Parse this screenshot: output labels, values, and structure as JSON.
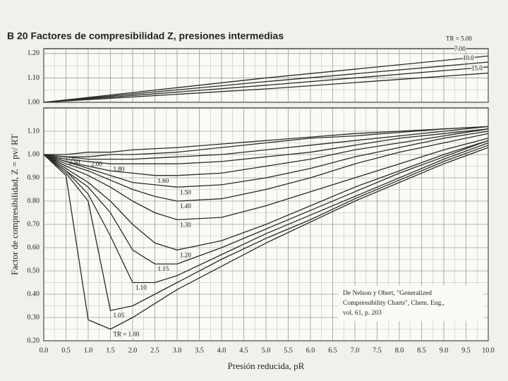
{
  "chart_data": [
    {
      "type": "line",
      "title": "B 20   Factores de compresibilidad Z, presiones intermedias",
      "x": [
        0,
        5,
        10
      ],
      "xlim": [
        0,
        10
      ],
      "ylim": [
        1.0,
        1.22
      ],
      "yticks": [
        {
          "value": 1.0,
          "label": "1.00"
        },
        {
          "value": 1.1,
          "label": "1.10"
        },
        {
          "value": 1.2,
          "label": "1.20"
        }
      ],
      "grid": true,
      "color": "#2a2a2a",
      "series": [
        {
          "name": "TR = 5.00",
          "values": [
            1.0,
            1.1,
            1.19
          ]
        },
        {
          "name": "7.00",
          "values": [
            1.0,
            1.085,
            1.165
          ]
        },
        {
          "name": "10.0",
          "values": [
            1.0,
            1.07,
            1.145
          ]
        },
        {
          "name": "15.0",
          "values": [
            1.0,
            1.055,
            1.12
          ]
        }
      ]
    },
    {
      "type": "line",
      "xlabel": "Presión reducida, pR",
      "ylabel": "Factor de compresibilidad, Z = pv/ RT",
      "annotation": [
        "De Nelson y Obert, \"Generalized",
        "Compressibility Charts\", Chem. Eng.,",
        "vol. 61, p. 203"
      ],
      "x": [
        0,
        0.5,
        1.0,
        1.5,
        2.0,
        2.5,
        3,
        4,
        5,
        6,
        7,
        8,
        9,
        10
      ],
      "xlim": [
        0,
        10
      ],
      "ylim": [
        0.2,
        1.2
      ],
      "xticks": [
        {
          "value": 0,
          "label": "0.0"
        },
        0.5,
        {
          "value": 1,
          "label": "1.0"
        },
        1.5,
        {
          "value": 2,
          "label": "2.0"
        },
        2.5,
        {
          "value": 3,
          "label": "3.0"
        },
        3.5,
        {
          "value": 4,
          "label": "4.0"
        },
        4.5,
        {
          "value": 5,
          "label": "5.0"
        },
        5.5,
        {
          "value": 6,
          "label": "6.0"
        },
        6.5,
        {
          "value": 7,
          "label": "7.0"
        },
        7.5,
        {
          "value": 8,
          "label": "8.0"
        },
        8.5,
        {
          "value": 9,
          "label": "9.0"
        },
        9.5,
        {
          "value": 10,
          "label": "10.0"
        }
      ],
      "yticks": [
        {
          "value": 0.2,
          "label": "0.20"
        },
        {
          "value": 0.3,
          "label": "0.30"
        },
        {
          "value": 0.4,
          "label": "0.40"
        },
        {
          "value": 0.5,
          "label": "0.50"
        },
        {
          "value": 0.6,
          "label": "0.60"
        },
        {
          "value": 0.7,
          "label": "0.70"
        },
        {
          "value": 0.8,
          "label": "0.80"
        },
        {
          "value": 0.9,
          "label": "0.90"
        },
        {
          "value": 1.0,
          "label": "1.00"
        },
        {
          "value": 1.1,
          "label": "1.10"
        }
      ],
      "grid": true,
      "color": "#2a2a2a",
      "series": [
        {
          "name": "TR = 3.50",
          "values": [
            1.0,
            1.0,
            1.01,
            1.01,
            1.02,
            1.025,
            1.03,
            1.045,
            1.06,
            1.075,
            1.09,
            1.1,
            1.11,
            1.12
          ]
        },
        {
          "name": "2.50",
          "values": [
            1.0,
            0.99,
            0.99,
            1.0,
            1.0,
            1.005,
            1.01,
            1.03,
            1.05,
            1.07,
            1.08,
            1.095,
            1.11,
            1.12
          ]
        },
        {
          "name": "2.00",
          "values": [
            1.0,
            0.99,
            0.98,
            0.98,
            0.98,
            0.985,
            0.99,
            1.0,
            1.02,
            1.04,
            1.06,
            1.08,
            1.1,
            1.12
          ]
        },
        {
          "name": "1.80",
          "values": [
            1.0,
            0.98,
            0.97,
            0.96,
            0.96,
            0.96,
            0.96,
            0.97,
            0.99,
            1.01,
            1.04,
            1.07,
            1.09,
            1.11
          ]
        },
        {
          "name": "1.60",
          "values": [
            1.0,
            0.97,
            0.95,
            0.93,
            0.92,
            0.91,
            0.91,
            0.92,
            0.95,
            0.98,
            1.02,
            1.05,
            1.08,
            1.11
          ]
        },
        {
          "name": "1.50",
          "values": [
            1.0,
            0.97,
            0.94,
            0.91,
            0.88,
            0.87,
            0.86,
            0.87,
            0.9,
            0.94,
            0.99,
            1.03,
            1.07,
            1.1
          ]
        },
        {
          "name": "1.40",
          "values": [
            1.0,
            0.96,
            0.93,
            0.89,
            0.85,
            0.82,
            0.8,
            0.81,
            0.85,
            0.9,
            0.96,
            1.01,
            1.05,
            1.09
          ]
        },
        {
          "name": "1.30",
          "values": [
            1.0,
            0.95,
            0.91,
            0.86,
            0.8,
            0.75,
            0.72,
            0.73,
            0.78,
            0.84,
            0.9,
            0.96,
            1.02,
            1.07
          ]
        },
        {
          "name": "1.20",
          "values": [
            1.0,
            0.94,
            0.88,
            0.8,
            0.7,
            0.62,
            0.59,
            0.63,
            0.7,
            0.78,
            0.86,
            0.93,
            1.0,
            1.06
          ]
        },
        {
          "name": "1.15",
          "values": [
            1.0,
            0.93,
            0.86,
            0.75,
            0.59,
            0.53,
            0.53,
            0.6,
            0.68,
            0.76,
            0.84,
            0.92,
            0.99,
            1.06
          ]
        },
        {
          "name": "1.10",
          "values": [
            1.0,
            0.93,
            0.83,
            0.65,
            0.45,
            0.45,
            0.48,
            0.57,
            0.66,
            0.74,
            0.82,
            0.9,
            0.98,
            1.05
          ]
        },
        {
          "name": "1.05",
          "values": [
            1.0,
            0.92,
            0.8,
            0.33,
            0.35,
            0.4,
            0.45,
            0.55,
            0.64,
            0.72,
            0.81,
            0.89,
            0.97,
            1.04
          ]
        },
        {
          "name": "TR = 1.00",
          "values": [
            1.0,
            0.91,
            0.29,
            0.25,
            0.3,
            0.36,
            0.42,
            0.52,
            0.62,
            0.71,
            0.8,
            0.88,
            0.96,
            1.03
          ]
        }
      ]
    }
  ]
}
